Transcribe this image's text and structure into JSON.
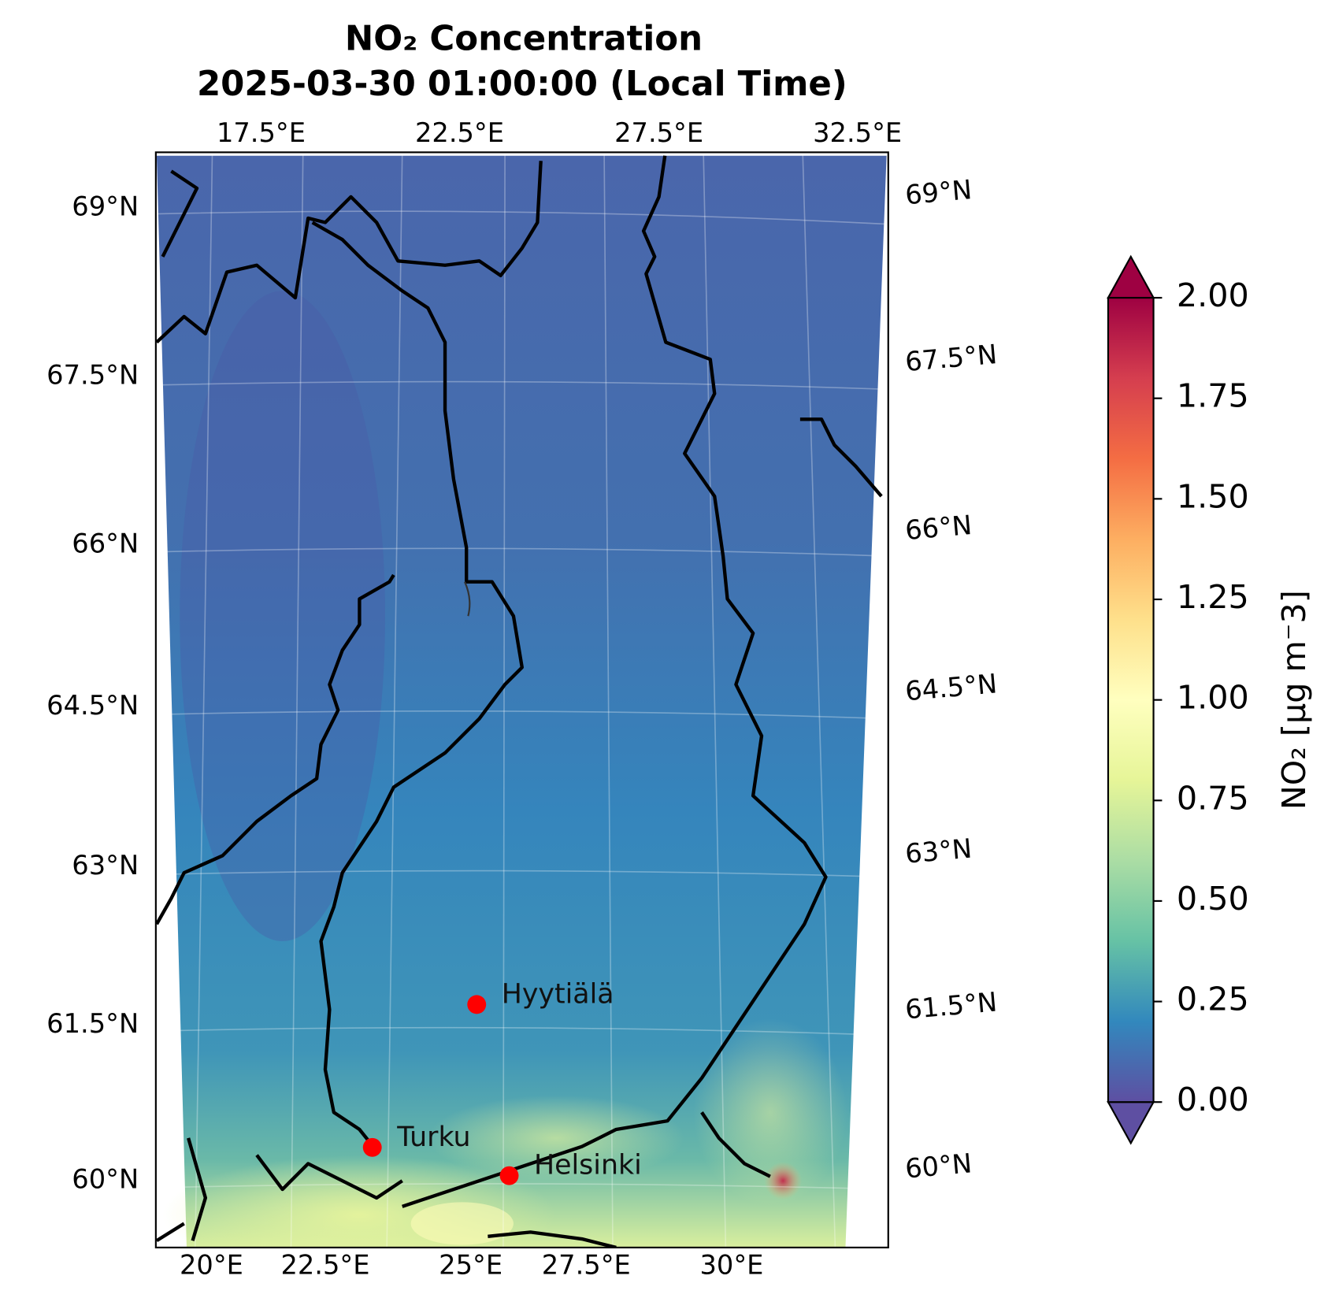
{
  "title": "NO₂ Concentration",
  "subtitle": "2025-03-30 01:00:00 (Local Time)",
  "map": {
    "top_lon_labels": [
      "17.5°E",
      "22.5°E",
      "27.5°E",
      "32.5°E"
    ],
    "bottom_lon_labels": [
      "20°E",
      "22.5°E",
      "25°E",
      "27.5°E",
      "30°E"
    ],
    "left_lat_labels": [
      "69°N",
      "67.5°N",
      "66°N",
      "64.5°N",
      "63°N",
      "61.5°N",
      "60°N"
    ],
    "right_lat_labels": [
      "69°N",
      "67.5°N",
      "66°N",
      "64.5°N",
      "63°N",
      "61.5°N",
      "60°N"
    ],
    "cities": [
      {
        "name": "Hyytiälä"
      },
      {
        "name": "Turku"
      },
      {
        "name": "Helsinki"
      }
    ]
  },
  "colorbar": {
    "label": "NO₂ [µg m⁻3]",
    "lim": [
      0,
      2
    ],
    "ticks": [
      {
        "value": 0,
        "label": "0.00"
      },
      {
        "value": 0.25,
        "label": "0.25"
      },
      {
        "value": 0.5,
        "label": "0.50"
      },
      {
        "value": 0.75,
        "label": "0.75"
      },
      {
        "value": 1,
        "label": "1.00"
      },
      {
        "value": 1.25,
        "label": "1.25"
      },
      {
        "value": 1.5,
        "label": "1.50"
      },
      {
        "value": 1.75,
        "label": "1.75"
      },
      {
        "value": 2,
        "label": "2.00"
      }
    ],
    "colors": [
      "#5e4fa2",
      "#3288bd",
      "#66c2a5",
      "#abdda4",
      "#e6f598",
      "#ffffbf",
      "#fee08b",
      "#fdae61",
      "#f46d43",
      "#d53e4f",
      "#9e0142"
    ]
  }
}
